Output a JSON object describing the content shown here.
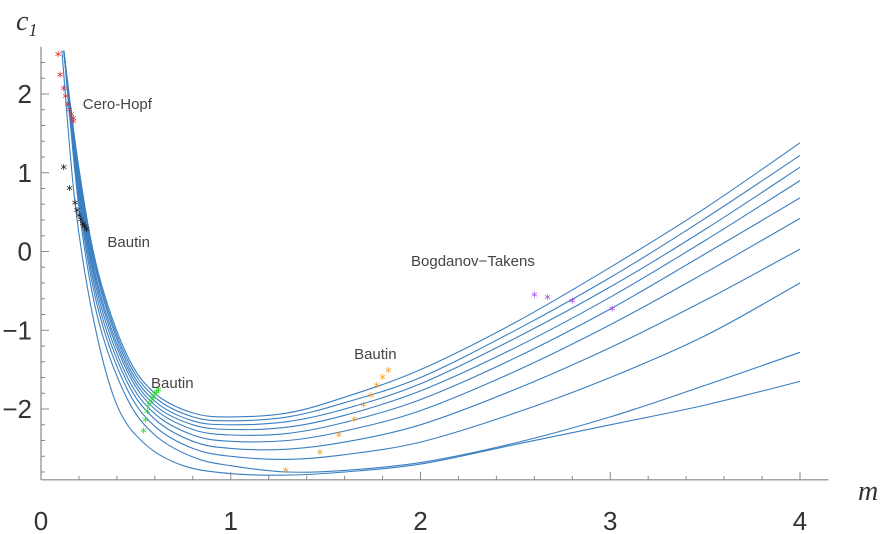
{
  "chart_data": {
    "type": "line",
    "xlabel": "m",
    "ylabel_main": "c",
    "ylabel_sub": "1",
    "xlim": [
      0,
      4.15
    ],
    "ylim": [
      -2.95,
      2.6
    ],
    "x_ticks": [
      0,
      1,
      2,
      3,
      4
    ],
    "y_ticks": [
      2,
      1,
      0,
      -1,
      -2
    ],
    "x_tick_labels": [
      "0",
      "1",
      "2",
      "3",
      "4"
    ],
    "y_tick_labels": [
      "2",
      "1",
      "0",
      "−1",
      "−2"
    ],
    "grid": false,
    "line_color": "#3a7fc1",
    "series": [
      {
        "x": [
          0.12,
          0.2,
          0.3,
          0.45,
          0.6,
          0.8,
          1.0,
          1.3,
          1.6,
          2.0,
          2.5,
          3.0,
          3.5,
          4.0
        ],
        "values": [
          2.55,
          1.05,
          -0.25,
          -1.3,
          -1.8,
          -2.05,
          -2.1,
          -2.05,
          -1.85,
          -1.5,
          -0.9,
          -0.2,
          0.55,
          1.38
        ]
      },
      {
        "x": [
          0.12,
          0.2,
          0.3,
          0.45,
          0.6,
          0.8,
          1.0,
          1.3,
          1.6,
          2.0,
          2.5,
          3.0,
          3.5,
          4.0
        ],
        "values": [
          2.55,
          1.0,
          -0.3,
          -1.35,
          -1.85,
          -2.1,
          -2.15,
          -2.1,
          -1.92,
          -1.6,
          -1.0,
          -0.33,
          0.42,
          1.22
        ]
      },
      {
        "x": [
          0.12,
          0.2,
          0.3,
          0.45,
          0.6,
          0.8,
          1.0,
          1.3,
          1.6,
          2.0,
          2.5,
          3.0,
          3.5,
          4.0
        ],
        "values": [
          2.55,
          0.95,
          -0.35,
          -1.4,
          -1.9,
          -2.15,
          -2.2,
          -2.16,
          -2.0,
          -1.68,
          -1.1,
          -0.45,
          0.28,
          1.07
        ]
      },
      {
        "x": [
          0.12,
          0.2,
          0.3,
          0.45,
          0.6,
          0.8,
          1.0,
          1.3,
          1.6,
          2.0,
          2.5,
          3.0,
          3.5,
          4.0
        ],
        "values": [
          2.55,
          0.9,
          -0.42,
          -1.45,
          -1.95,
          -2.2,
          -2.26,
          -2.23,
          -2.08,
          -1.77,
          -1.22,
          -0.58,
          0.14,
          0.9
        ]
      },
      {
        "x": [
          0.12,
          0.2,
          0.3,
          0.45,
          0.6,
          0.8,
          1.0,
          1.3,
          1.6,
          2.0,
          2.5,
          3.0,
          3.5,
          4.0
        ],
        "values": [
          2.55,
          0.85,
          -0.48,
          -1.5,
          -2.0,
          -2.26,
          -2.33,
          -2.31,
          -2.17,
          -1.88,
          -1.35,
          -0.73,
          -0.03,
          0.68
        ]
      },
      {
        "x": [
          0.12,
          0.2,
          0.3,
          0.45,
          0.6,
          0.8,
          1.0,
          1.3,
          1.6,
          2.0,
          2.5,
          3.0,
          3.5,
          4.0
        ],
        "values": [
          2.55,
          0.8,
          -0.55,
          -1.57,
          -2.06,
          -2.33,
          -2.41,
          -2.4,
          -2.28,
          -2.02,
          -1.52,
          -0.93,
          -0.27,
          0.42
        ]
      },
      {
        "x": [
          0.12,
          0.2,
          0.3,
          0.45,
          0.6,
          0.8,
          1.0,
          1.3,
          1.6,
          2.0,
          2.5,
          3.0,
          3.5,
          4.0
        ],
        "values": [
          2.55,
          0.73,
          -0.63,
          -1.64,
          -2.13,
          -2.41,
          -2.5,
          -2.51,
          -2.42,
          -2.2,
          -1.75,
          -1.22,
          -0.62,
          0.03
        ]
      },
      {
        "x": [
          0.12,
          0.2,
          0.3,
          0.45,
          0.6,
          0.8,
          1.0,
          1.3,
          1.6,
          2.0,
          2.5,
          3.0,
          3.5,
          4.0
        ],
        "values": [
          2.55,
          0.65,
          -0.72,
          -1.73,
          -2.22,
          -2.5,
          -2.6,
          -2.64,
          -2.58,
          -2.42,
          -2.05,
          -1.6,
          -1.07,
          -0.4
        ]
      },
      {
        "x": [
          0.12,
          0.2,
          0.3,
          0.45,
          0.6,
          0.8,
          1.0,
          1.3,
          1.6,
          2.0,
          2.5,
          3.0,
          3.5,
          4.0
        ],
        "values": [
          2.55,
          0.55,
          -0.85,
          -1.85,
          -2.33,
          -2.61,
          -2.72,
          -2.8,
          -2.78,
          -2.68,
          -2.43,
          -2.1,
          -1.7,
          -1.28
        ]
      },
      {
        "x": [
          0.11,
          0.18,
          0.28,
          0.4,
          0.55,
          0.75,
          1.0,
          1.3,
          1.6,
          2.0,
          2.5,
          3.0,
          3.5,
          4.0
        ],
        "values": [
          2.55,
          0.6,
          -0.9,
          -1.95,
          -2.45,
          -2.72,
          -2.82,
          -2.84,
          -2.8,
          -2.7,
          -2.45,
          -2.2,
          -1.95,
          -1.65
        ]
      }
    ],
    "markers": [
      {
        "label": "Cero-Hopf",
        "color": "#ee2222",
        "glyph": "*",
        "points": [
          [
            0.09,
            2.48
          ],
          [
            0.1,
            2.22
          ],
          [
            0.12,
            2.05
          ],
          [
            0.13,
            1.95
          ],
          [
            0.14,
            1.85
          ],
          [
            0.15,
            1.78
          ],
          [
            0.16,
            1.72
          ],
          [
            0.17,
            1.67
          ],
          [
            0.17,
            1.63
          ]
        ]
      },
      {
        "label": "Bautin",
        "color": "#111111",
        "glyph": "*",
        "points": [
          [
            0.12,
            1.05
          ],
          [
            0.15,
            0.78
          ],
          [
            0.18,
            0.6
          ],
          [
            0.19,
            0.5
          ],
          [
            0.2,
            0.44
          ],
          [
            0.21,
            0.38
          ],
          [
            0.22,
            0.33
          ],
          [
            0.23,
            0.3
          ],
          [
            0.24,
            0.26
          ]
        ]
      },
      {
        "label": "Bautin",
        "color": "#22dd22",
        "glyph": "*",
        "points": [
          [
            0.54,
            -2.3
          ],
          [
            0.55,
            -2.16
          ],
          [
            0.56,
            -2.05
          ],
          [
            0.57,
            -1.97
          ],
          [
            0.58,
            -1.92
          ],
          [
            0.59,
            -1.87
          ],
          [
            0.6,
            -1.83
          ],
          [
            0.61,
            -1.8
          ],
          [
            0.62,
            -1.78
          ]
        ]
      },
      {
        "label": "Bautin",
        "color": "#f0a020",
        "glyph": "*",
        "points": [
          [
            1.29,
            -2.8
          ],
          [
            1.47,
            -2.57
          ],
          [
            1.57,
            -2.35
          ],
          [
            1.65,
            -2.15
          ],
          [
            1.7,
            -1.97
          ],
          [
            1.74,
            -1.85
          ],
          [
            1.77,
            -1.72
          ],
          [
            1.8,
            -1.62
          ],
          [
            1.83,
            -1.53
          ]
        ]
      },
      {
        "label": "Bogdanov-Takens",
        "color": "#aa44ee",
        "glyph": "*",
        "points": [
          [
            2.6,
            -0.57
          ],
          [
            2.67,
            -0.6
          ],
          [
            2.8,
            -0.65
          ],
          [
            3.01,
            -0.75
          ]
        ]
      }
    ],
    "annotations": [
      {
        "text": "Cero-Hopf",
        "x": 0.22,
        "y": 1.87
      },
      {
        "text": "Bautin",
        "x": 0.35,
        "y": 0.12
      },
      {
        "text": "Bautin",
        "x": 0.58,
        "y": -1.67
      },
      {
        "text": "Bautin",
        "x": 1.65,
        "y": -1.3
      },
      {
        "text": "Bogdanov−Takens",
        "x": 1.95,
        "y": -0.12
      }
    ]
  }
}
